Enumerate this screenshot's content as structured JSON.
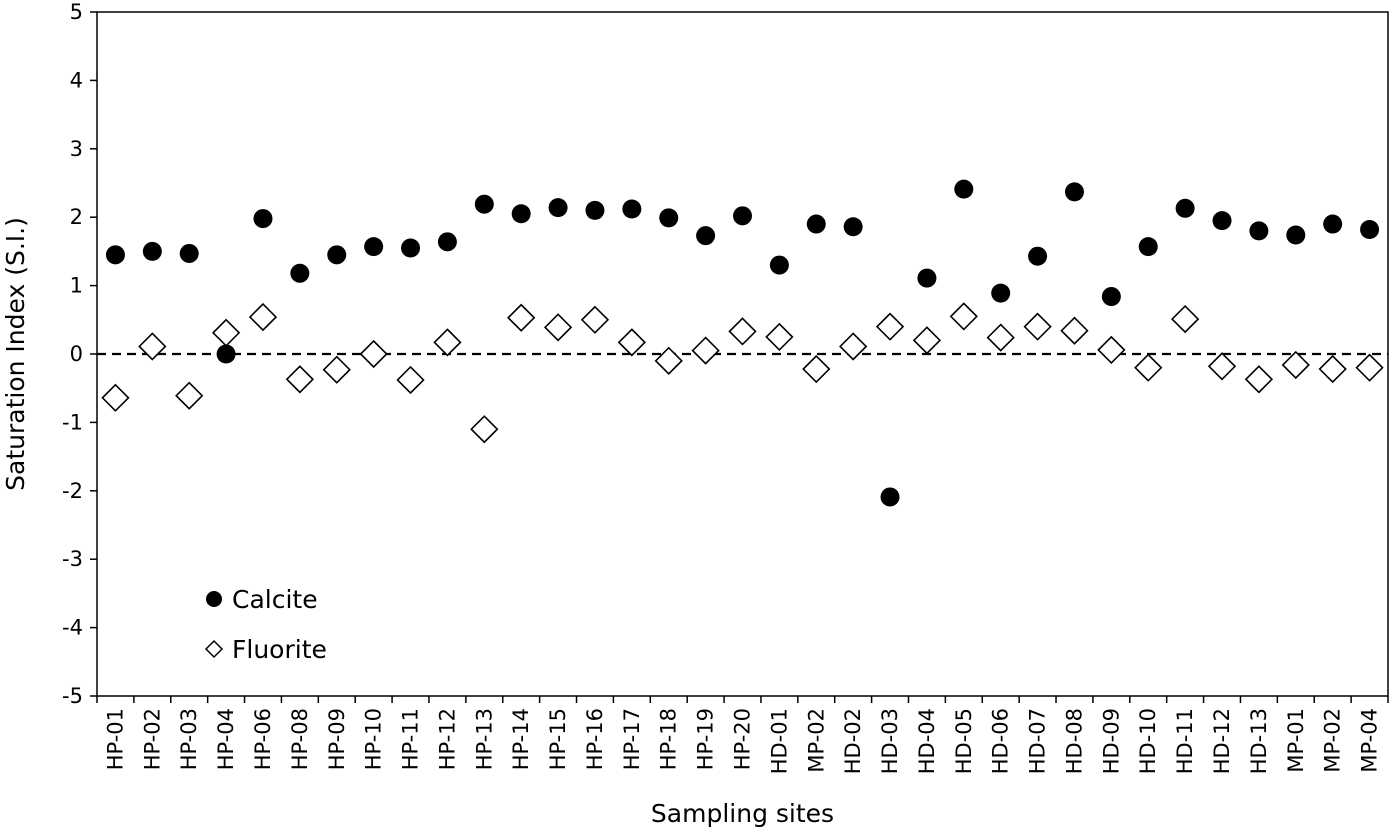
{
  "chart_data": {
    "type": "scatter",
    "xlabel": "Sampling sites",
    "ylabel": "Saturation Index (S.I.)",
    "ylim": [
      -5,
      5
    ],
    "yticks": [
      5,
      4,
      3,
      2,
      1,
      0,
      -1,
      -2,
      -3,
      -4,
      -5
    ],
    "reference_line": {
      "y": 0,
      "style": "dashed"
    },
    "grid": false,
    "legend_position": "bottom-left",
    "categories": [
      "HP-01",
      "HP-02",
      "HP-03",
      "HP-04",
      "HP-06",
      "HP-08",
      "HP-09",
      "HP-10",
      "HP-11",
      "HP-12",
      "HP-13",
      "HP-14",
      "HP-15",
      "HP-16",
      "HP-17",
      "HP-18",
      "HP-19",
      "HP-20",
      "HD-01",
      "MP-02",
      "HD-02",
      "HD-03",
      "HD-04",
      "HD-05",
      "HD-06",
      "HD-07",
      "HD-08",
      "HD-09",
      "HD-10",
      "HD-11",
      "HD-12",
      "HD-13",
      "MP-01",
      "MP-02",
      "MP-04"
    ],
    "series": [
      {
        "name": "Calcite",
        "marker": "filled-circle",
        "color": "#000000",
        "values": [
          1.45,
          1.5,
          1.47,
          0.0,
          1.98,
          1.18,
          1.45,
          1.57,
          1.55,
          1.64,
          2.19,
          2.05,
          2.14,
          2.1,
          2.12,
          1.99,
          1.73,
          2.02,
          1.3,
          1.9,
          1.86,
          -2.09,
          1.11,
          2.41,
          0.89,
          1.43,
          2.37,
          0.84,
          1.57,
          2.13,
          1.95,
          1.8,
          1.74,
          1.9,
          1.82
        ]
      },
      {
        "name": "Fluorite",
        "marker": "open-diamond",
        "color": "#000000",
        "values": [
          -0.64,
          0.11,
          -0.61,
          0.31,
          0.54,
          -0.37,
          -0.23,
          0.0,
          -0.38,
          0.17,
          -1.1,
          0.53,
          0.39,
          0.5,
          0.17,
          -0.1,
          0.05,
          0.33,
          0.25,
          -0.22,
          0.11,
          0.4,
          0.2,
          0.55,
          0.24,
          0.4,
          0.34,
          0.06,
          -0.2,
          0.51,
          -0.18,
          -0.37,
          -0.16,
          -0.22,
          -0.2
        ]
      }
    ]
  }
}
